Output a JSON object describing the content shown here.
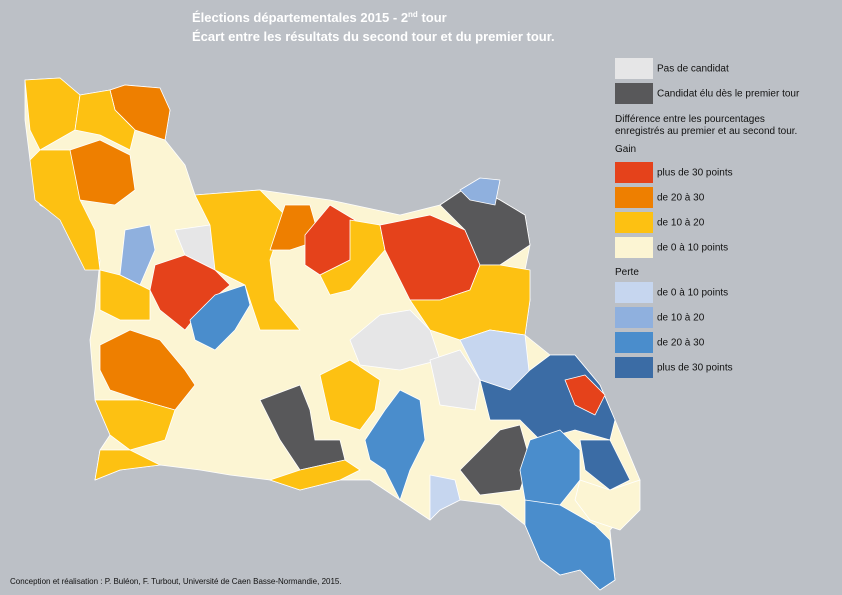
{
  "header": {
    "title_line1": {
      "text": "Élections départementales 2015 - 2",
      "superscript": "nd",
      "after": " tour"
    },
    "title_line2": "Écart entre les résultats du second tour et du premier tour."
  },
  "legend": {
    "top_items": [
      {
        "label": "Pas de candidat",
        "color": "#e6e6e7"
      },
      {
        "label": "Candidat élu dès le premier tour",
        "color": "#58585a"
      }
    ],
    "description": [
      "Différence entre les pourcentages",
      "enregistrés au premier et au second tour."
    ],
    "gain": {
      "title": "Gain",
      "items": [
        {
          "label": "plus de 30 points",
          "color": "#e5421b"
        },
        {
          "label": "de 20 à 30",
          "color": "#ee7f00"
        },
        {
          "label": "de 10 à 20",
          "color": "#fdc112"
        },
        {
          "label": "de 0 à 10 points",
          "color": "#fcf5d3"
        }
      ]
    },
    "loss": {
      "title": "Perte",
      "items": [
        {
          "label": "de 0 à 10 points",
          "color": "#c6d6ef"
        },
        {
          "label": "de 10 à 20",
          "color": "#8fb0de"
        },
        {
          "label": "de 20 à 30",
          "color": "#4a8dcc"
        },
        {
          "label": "plus de 30 points",
          "color": "#3b6ca5"
        }
      ]
    }
  },
  "credit": "Conception et réalisation : P. Buléon, F. Turbout, Université de Caen Basse-Normandie, 2015."
}
